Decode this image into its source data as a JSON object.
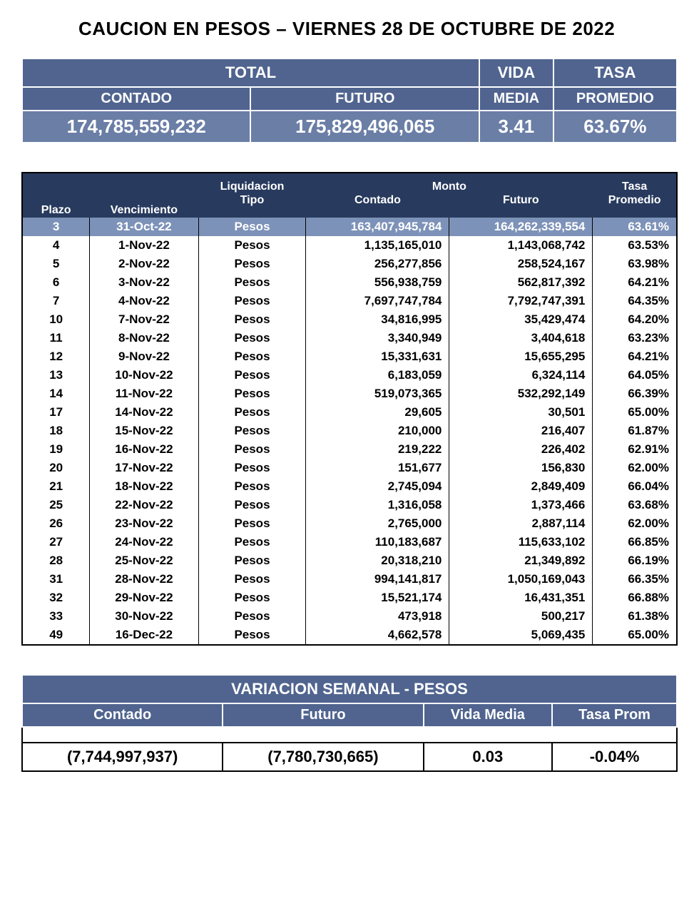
{
  "title": "CAUCION EN PESOS – VIERNES  28 DE OCTUBRE DE 2022",
  "colors": {
    "header_dark": "#283a5e",
    "header_mid": "#50648f",
    "row_highlight": "#7d92b8",
    "value_bg": "#6a7ea6",
    "text_on_dark": "#ffffff",
    "border": "#000000",
    "page_bg": "#ffffff"
  },
  "summary": {
    "labels": {
      "total": "TOTAL",
      "contado": "CONTADO",
      "futuro": "FUTURO",
      "vida": "VIDA",
      "media": "MEDIA",
      "tasa": "TASA",
      "promedio": "PROMEDIO"
    },
    "values": {
      "contado": "174,785,559,232",
      "futuro": "175,829,496,065",
      "vida_media": "3.41",
      "tasa_promedio": "63.67%"
    }
  },
  "detail": {
    "headers": {
      "plazo": "Plazo",
      "vencimiento": "Vencimiento",
      "liquidacion": "Liquidacion",
      "tipo": "Tipo",
      "monto": "Monto",
      "contado": "Contado",
      "futuro": "Futuro",
      "tasa": "Tasa",
      "promedio": "Promedio"
    },
    "rows": [
      {
        "plazo": "3",
        "venc": "31-Oct-22",
        "tipo": "Pesos",
        "contado": "163,407,945,784",
        "futuro": "164,262,339,554",
        "tasa": "63.61%",
        "highlight": true
      },
      {
        "plazo": "4",
        "venc": "1-Nov-22",
        "tipo": "Pesos",
        "contado": "1,135,165,010",
        "futuro": "1,143,068,742",
        "tasa": "63.53%"
      },
      {
        "plazo": "5",
        "venc": "2-Nov-22",
        "tipo": "Pesos",
        "contado": "256,277,856",
        "futuro": "258,524,167",
        "tasa": "63.98%"
      },
      {
        "plazo": "6",
        "venc": "3-Nov-22",
        "tipo": "Pesos",
        "contado": "556,938,759",
        "futuro": "562,817,392",
        "tasa": "64.21%"
      },
      {
        "plazo": "7",
        "venc": "4-Nov-22",
        "tipo": "Pesos",
        "contado": "7,697,747,784",
        "futuro": "7,792,747,391",
        "tasa": "64.35%"
      },
      {
        "plazo": "10",
        "venc": "7-Nov-22",
        "tipo": "Pesos",
        "contado": "34,816,995",
        "futuro": "35,429,474",
        "tasa": "64.20%"
      },
      {
        "plazo": "11",
        "venc": "8-Nov-22",
        "tipo": "Pesos",
        "contado": "3,340,949",
        "futuro": "3,404,618",
        "tasa": "63.23%"
      },
      {
        "plazo": "12",
        "venc": "9-Nov-22",
        "tipo": "Pesos",
        "contado": "15,331,631",
        "futuro": "15,655,295",
        "tasa": "64.21%"
      },
      {
        "plazo": "13",
        "venc": "10-Nov-22",
        "tipo": "Pesos",
        "contado": "6,183,059",
        "futuro": "6,324,114",
        "tasa": "64.05%"
      },
      {
        "plazo": "14",
        "venc": "11-Nov-22",
        "tipo": "Pesos",
        "contado": "519,073,365",
        "futuro": "532,292,149",
        "tasa": "66.39%"
      },
      {
        "plazo": "17",
        "venc": "14-Nov-22",
        "tipo": "Pesos",
        "contado": "29,605",
        "futuro": "30,501",
        "tasa": "65.00%"
      },
      {
        "plazo": "18",
        "venc": "15-Nov-22",
        "tipo": "Pesos",
        "contado": "210,000",
        "futuro": "216,407",
        "tasa": "61.87%"
      },
      {
        "plazo": "19",
        "venc": "16-Nov-22",
        "tipo": "Pesos",
        "contado": "219,222",
        "futuro": "226,402",
        "tasa": "62.91%"
      },
      {
        "plazo": "20",
        "venc": "17-Nov-22",
        "tipo": "Pesos",
        "contado": "151,677",
        "futuro": "156,830",
        "tasa": "62.00%"
      },
      {
        "plazo": "21",
        "venc": "18-Nov-22",
        "tipo": "Pesos",
        "contado": "2,745,094",
        "futuro": "2,849,409",
        "tasa": "66.04%"
      },
      {
        "plazo": "25",
        "venc": "22-Nov-22",
        "tipo": "Pesos",
        "contado": "1,316,058",
        "futuro": "1,373,466",
        "tasa": "63.68%"
      },
      {
        "plazo": "26",
        "venc": "23-Nov-22",
        "tipo": "Pesos",
        "contado": "2,765,000",
        "futuro": "2,887,114",
        "tasa": "62.00%"
      },
      {
        "plazo": "27",
        "venc": "24-Nov-22",
        "tipo": "Pesos",
        "contado": "110,183,687",
        "futuro": "115,633,102",
        "tasa": "66.85%"
      },
      {
        "plazo": "28",
        "venc": "25-Nov-22",
        "tipo": "Pesos",
        "contado": "20,318,210",
        "futuro": "21,349,892",
        "tasa": "66.19%"
      },
      {
        "plazo": "31",
        "venc": "28-Nov-22",
        "tipo": "Pesos",
        "contado": "994,141,817",
        "futuro": "1,050,169,043",
        "tasa": "66.35%"
      },
      {
        "plazo": "32",
        "venc": "29-Nov-22",
        "tipo": "Pesos",
        "contado": "15,521,174",
        "futuro": "16,431,351",
        "tasa": "66.88%"
      },
      {
        "plazo": "33",
        "venc": "30-Nov-22",
        "tipo": "Pesos",
        "contado": "473,918",
        "futuro": "500,217",
        "tasa": "61.38%"
      },
      {
        "plazo": "49",
        "venc": "16-Dec-22",
        "tipo": "Pesos",
        "contado": "4,662,578",
        "futuro": "5,069,435",
        "tasa": "65.00%"
      }
    ]
  },
  "variacion": {
    "title": "VARIACION SEMANAL - PESOS",
    "labels": {
      "contado": "Contado",
      "futuro": "Futuro",
      "vida_media": "Vida Media",
      "tasa_prom": "Tasa Prom"
    },
    "values": {
      "contado": "(7,744,997,937)",
      "futuro": "(7,780,730,665)",
      "vida_media": "0.03",
      "tasa_prom": "-0.04%"
    }
  }
}
